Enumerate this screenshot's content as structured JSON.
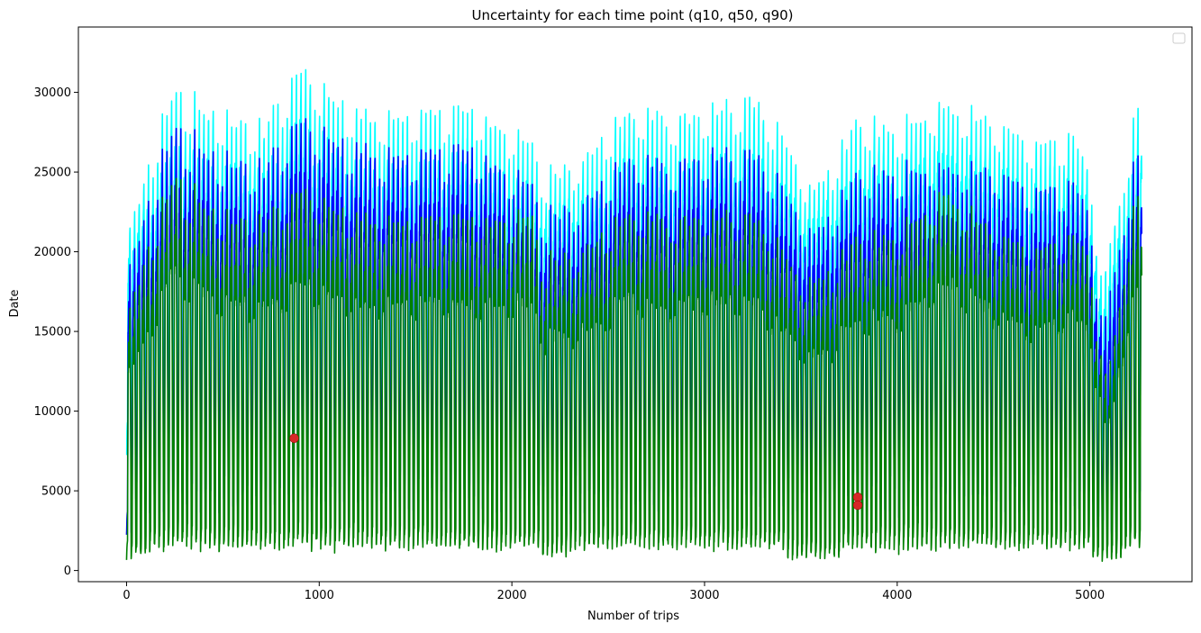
{
  "chart_data": {
    "type": "line",
    "title": "Uncertainty for each time point (q10, q50, q90)",
    "xlabel": "Number of trips",
    "ylabel": "Date",
    "xlim": [
      -250,
      5530
    ],
    "ylim": [
      -700,
      34100
    ],
    "xticks": [
      0,
      1000,
      2000,
      3000,
      4000,
      5000
    ],
    "yticks": [
      0,
      5000,
      10000,
      15000,
      20000,
      25000,
      30000
    ],
    "xtick_labels": [
      "0",
      "1000",
      "2000",
      "3000",
      "4000",
      "5000"
    ],
    "ytick_labels": [
      "0",
      "5000",
      "10000",
      "15000",
      "20000",
      "25000",
      "30000"
    ],
    "grid": false,
    "legend": {
      "placement": "top-right",
      "entries": []
    },
    "n_points": 5270,
    "cycle_length": 24,
    "series": [
      {
        "role": "q90",
        "color": "#00ffff",
        "envelope_x": [
          0,
          240,
          480,
          720,
          900,
          1200,
          1500,
          1800,
          2100,
          2160,
          2400,
          2600,
          2800,
          3000,
          3250,
          3500,
          3550,
          3800,
          4000,
          4250,
          4500,
          4720,
          4900,
          5000,
          5060,
          5100,
          5200,
          5270
        ],
        "envelope_high": [
          21000,
          30500,
          29000,
          28000,
          32000,
          28800,
          29000,
          29200,
          27000,
          25000,
          26000,
          29500,
          28500,
          29000,
          30000,
          26000,
          24000,
          28500,
          28000,
          29700,
          28500,
          27000,
          27700,
          25800,
          18000,
          20000,
          27000,
          30600
        ],
        "envelope_low": [
          19000,
          19500,
          19000,
          19000,
          20000,
          20000,
          20000,
          20000,
          19000,
          16500,
          18000,
          20000,
          19500,
          20000,
          20000,
          16500,
          14500,
          19000,
          19500,
          20000,
          20000,
          18000,
          19000,
          17000,
          12000,
          12000,
          17000,
          19000
        ],
        "trough_value": 8200
      },
      {
        "role": "q50",
        "color": "#0000ff",
        "envelope_x": [
          0,
          240,
          480,
          720,
          900,
          1200,
          1500,
          1800,
          2100,
          2160,
          2400,
          2600,
          2800,
          3000,
          3250,
          3500,
          3550,
          3800,
          4000,
          4250,
          4500,
          4720,
          4900,
          5000,
          5060,
          5100,
          5200,
          5270
        ],
        "envelope_high": [
          18700,
          28300,
          26400,
          25500,
          28800,
          26700,
          26500,
          26800,
          24400,
          22500,
          23300,
          26600,
          25500,
          26300,
          26600,
          23000,
          21300,
          25100,
          25400,
          25700,
          25400,
          24100,
          24700,
          23300,
          15500,
          17000,
          24500,
          27400
        ],
        "envelope_low": [
          16000,
          17000,
          16500,
          16500,
          17500,
          17500,
          17500,
          17500,
          16500,
          14000,
          15500,
          17500,
          17000,
          17500,
          17500,
          14000,
          12000,
          16500,
          17000,
          17500,
          17500,
          15500,
          16500,
          14500,
          8000,
          8000,
          14500,
          16500
        ],
        "trough_value": 4500
      },
      {
        "role": "q10",
        "color": "#008000",
        "envelope_x": [
          0,
          240,
          480,
          720,
          900,
          1200,
          1500,
          1800,
          2100,
          2160,
          2400,
          2600,
          2800,
          3000,
          3250,
          3500,
          3550,
          3800,
          4000,
          4250,
          4500,
          4720,
          4900,
          5000,
          5060,
          5100,
          5200,
          5270
        ],
        "envelope_high": [
          16000,
          25200,
          22700,
          22000,
          24300,
          22300,
          22300,
          22300,
          22500,
          19700,
          20200,
          23000,
          22000,
          22500,
          22500,
          19000,
          18300,
          21000,
          21300,
          24200,
          21500,
          20300,
          21300,
          20500,
          13000,
          12500,
          21500,
          25000
        ],
        "envelope_low": [
          14000,
          14000,
          14000,
          14000,
          15000,
          15000,
          15000,
          15000,
          14000,
          11000,
          13000,
          15000,
          14500,
          15000,
          15000,
          11000,
          8500,
          13000,
          14000,
          15000,
          15000,
          12500,
          14000,
          12500,
          4500,
          4500,
          12500,
          14500
        ],
        "trough_value": 1600
      }
    ],
    "markers": {
      "color": "#d62728",
      "points": [
        {
          "x": 870,
          "y": 8300
        },
        {
          "x": 3795,
          "y": 4600
        },
        {
          "x": 3795,
          "y": 4100
        }
      ]
    }
  }
}
